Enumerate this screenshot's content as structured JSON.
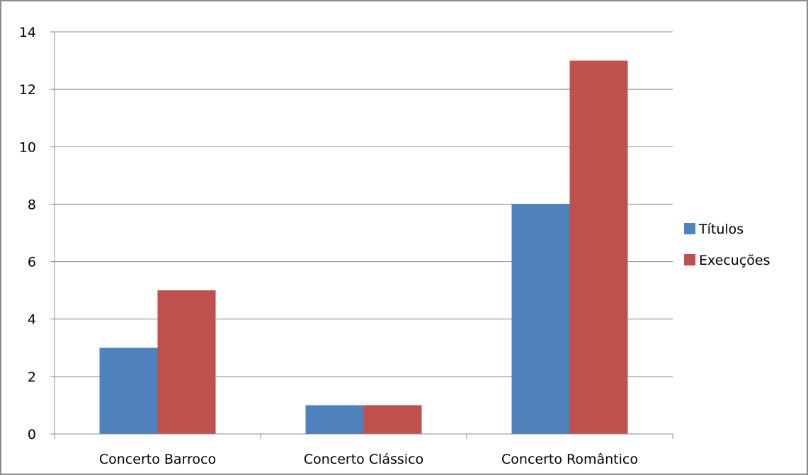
{
  "chart_data": {
    "type": "bar",
    "title": "",
    "xlabel": "",
    "ylabel": "",
    "categories": [
      "Concerto Barroco",
      "Concerto Clássico",
      "Concerto Romântico"
    ],
    "series": [
      {
        "name": "Títulos",
        "values": [
          3,
          1,
          8
        ],
        "color": "#4f81bd"
      },
      {
        "name": "Execuções",
        "values": [
          5,
          1,
          13
        ],
        "color": "#c0504d"
      }
    ],
    "ylim": [
      0,
      14
    ],
    "yticks": [
      0,
      2,
      4,
      6,
      8,
      10,
      12,
      14
    ],
    "grid": true,
    "legend_position": "right"
  }
}
